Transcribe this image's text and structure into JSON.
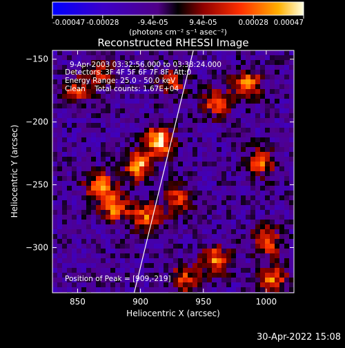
{
  "chart_data": {
    "type": "heatmap",
    "title": "Reconstructed RHESSI Image",
    "xlabel": "Heliocentric X (arcsec)",
    "ylabel": "Heliocentric Y (arcsec)",
    "xlim": [
      830,
      1022
    ],
    "ylim": [
      -336,
      -143
    ],
    "x_ticks": [
      850,
      900,
      950,
      1000
    ],
    "y_ticks": [
      -150,
      -200,
      -250,
      -300
    ],
    "colorbar": {
      "ticks": [
        "-0.00047",
        "-0.00028",
        "-9.4e-05",
        "9.4e-05",
        "0.00028",
        "0.00047"
      ],
      "unit_label": "(photons cm⁻² s⁻¹ asec⁻²)",
      "min": -0.00047,
      "max": 0.00047
    },
    "annotations": [
      "9-Apr-2003 03:32:56.000 to 03:38:24.000",
      "Detectors: 3F 4F 5F 6F 7F 8F, Att:0",
      "Energy Range: 25.0 - 50.0 keV",
      "Clean    Total counts: 1.67E+04"
    ],
    "peak_text": "Position of Peak = [909,-219]",
    "peak": [
      909,
      -219
    ],
    "limb_line": [
      [
        895,
        -336
      ],
      [
        942,
        -143
      ]
    ],
    "sources": [
      {
        "x": 915,
        "y": -215,
        "amp": 1.0
      },
      {
        "x": 898,
        "y": -235,
        "amp": 0.85
      },
      {
        "x": 868,
        "y": -252,
        "amp": 0.8
      },
      {
        "x": 880,
        "y": -268,
        "amp": 0.75
      },
      {
        "x": 905,
        "y": -275,
        "amp": 0.7
      },
      {
        "x": 930,
        "y": -262,
        "amp": 0.55
      },
      {
        "x": 985,
        "y": -170,
        "amp": 0.8
      },
      {
        "x": 960,
        "y": -185,
        "amp": 0.6
      },
      {
        "x": 995,
        "y": -232,
        "amp": 0.65
      },
      {
        "x": 960,
        "y": -310,
        "amp": 0.75
      },
      {
        "x": 1000,
        "y": -295,
        "amp": 0.7
      },
      {
        "x": 1005,
        "y": -325,
        "amp": 0.7
      },
      {
        "x": 935,
        "y": -325,
        "amp": 0.55
      },
      {
        "x": 850,
        "y": -175,
        "amp": 0.5
      },
      {
        "x": 870,
        "y": -160,
        "amp": 0.45
      },
      {
        "x": 925,
        "y": -170,
        "amp": 0.5
      }
    ]
  },
  "footer": {
    "timestamp": "30-Apr-2022 15:08"
  }
}
